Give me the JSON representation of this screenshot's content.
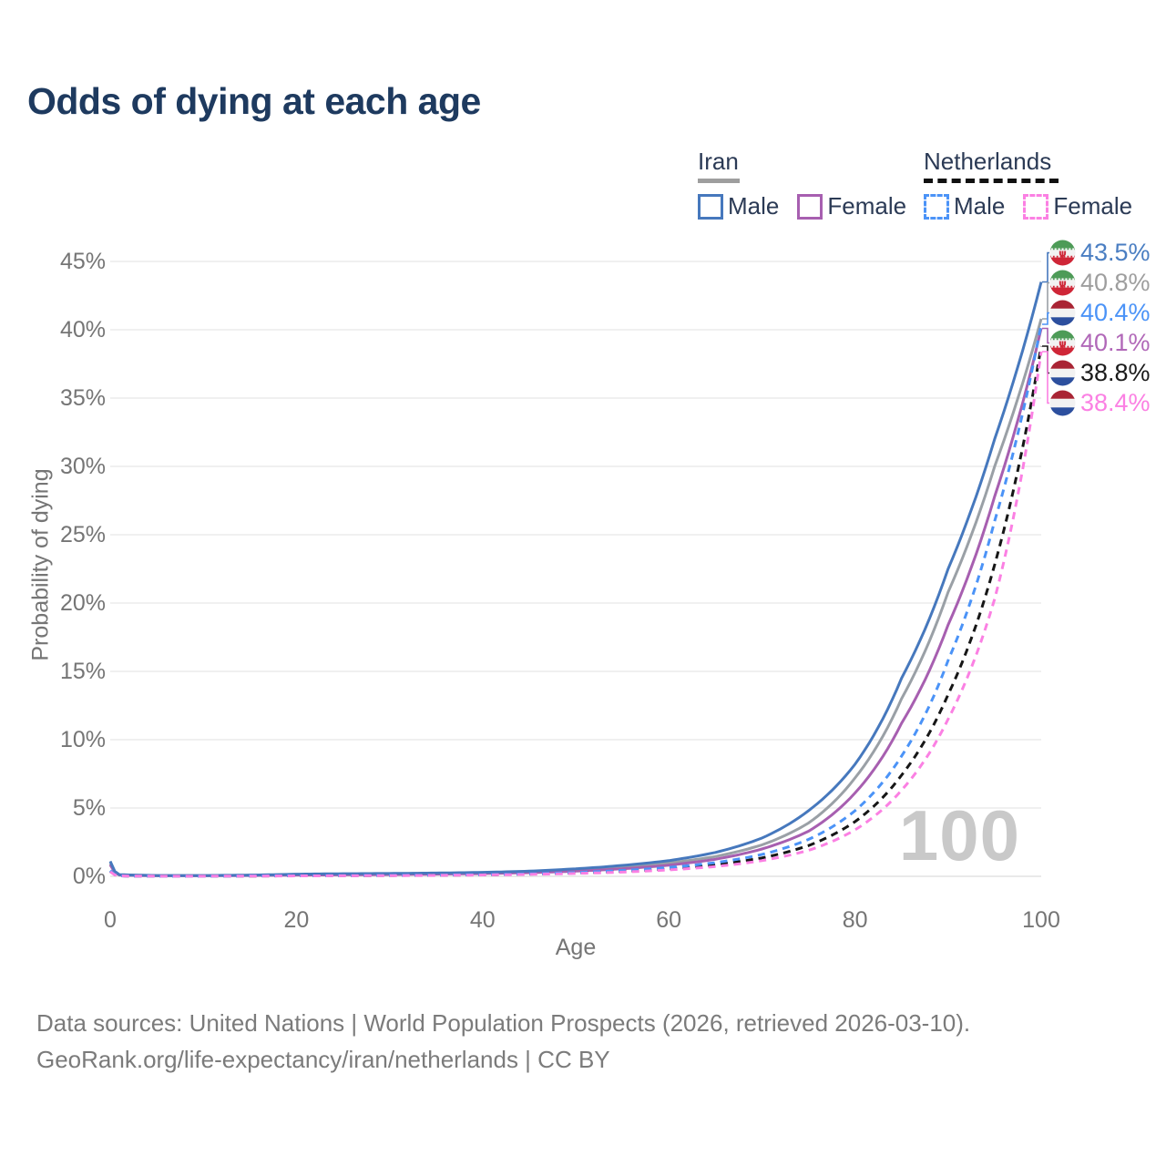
{
  "title": "Odds of dying at each age",
  "legend": {
    "iran": {
      "title": "Iran",
      "items": [
        {
          "label": "Male"
        },
        {
          "label": "Female"
        }
      ]
    },
    "netherlands": {
      "title": "Netherlands",
      "items": [
        {
          "label": "Male"
        },
        {
          "label": "Female"
        }
      ]
    }
  },
  "watermark": {
    "hovered_age": "100"
  },
  "footer": {
    "line1": "Data sources: United Nations | World Population Prospects (2026, retrieved 2026-03-10).",
    "line2": "GeoRank.org/life-expectancy/iran/netherlands | CC BY"
  },
  "colors": {
    "title_text": "#1e3a5f",
    "legend_text": "#2b3a55",
    "axis_text": "#757575",
    "gridline": "#ececec",
    "watermark": "#c9c9c9",
    "iran_underline": "#9e9e9e",
    "netherlands_underline": "#111111"
  },
  "chart_data": {
    "type": "line",
    "title": "Odds of dying at each age",
    "xlabel": "Age",
    "ylabel": "Probability of dying",
    "xlim": [
      0,
      100
    ],
    "ylim": [
      0,
      45
    ],
    "grid": true,
    "legend_position": "top-right",
    "x_ticks": [
      {
        "label": "0",
        "value": 0
      },
      {
        "label": "20",
        "value": 20
      },
      {
        "label": "40",
        "value": 40
      },
      {
        "label": "60",
        "value": 60
      },
      {
        "label": "80",
        "value": 80
      },
      {
        "label": "100",
        "value": 100
      }
    ],
    "y_ticks": [
      {
        "label": "0%",
        "value": 0
      },
      {
        "label": "5%",
        "value": 5
      },
      {
        "label": "10%",
        "value": 10
      },
      {
        "label": "15%",
        "value": 15
      },
      {
        "label": "20%",
        "value": 20
      },
      {
        "label": "25%",
        "value": 25
      },
      {
        "label": "30%",
        "value": 30
      },
      {
        "label": "35%",
        "value": 35
      },
      {
        "label": "40%",
        "value": 40
      },
      {
        "label": "45%",
        "value": 45
      }
    ],
    "series": [
      {
        "id": "iran-both",
        "name": "Iran (both sexes)",
        "country": "Iran",
        "flag": "iran",
        "color": "#9aa0a6",
        "label_color": "#9e9e9e",
        "dash": null,
        "end_value": 40.8,
        "end_label": "40.8%",
        "points": [
          [
            0,
            0.95
          ],
          [
            1,
            0.1
          ],
          [
            5,
            0.05
          ],
          [
            10,
            0.05
          ],
          [
            15,
            0.08
          ],
          [
            20,
            0.13
          ],
          [
            25,
            0.16
          ],
          [
            30,
            0.18
          ],
          [
            35,
            0.21
          ],
          [
            40,
            0.25
          ],
          [
            45,
            0.33
          ],
          [
            50,
            0.47
          ],
          [
            55,
            0.68
          ],
          [
            60,
            0.98
          ],
          [
            65,
            1.45
          ],
          [
            70,
            2.3
          ],
          [
            75,
            3.9
          ],
          [
            80,
            7.2
          ],
          [
            85,
            13.0
          ],
          [
            90,
            20.8
          ],
          [
            95,
            30.0
          ],
          [
            100,
            40.8
          ]
        ]
      },
      {
        "id": "iran-female",
        "name": "Iran Female",
        "country": "Iran",
        "flag": "iran",
        "color": "#a75fb0",
        "label_color": "#b168b8",
        "dash": null,
        "end_value": 40.1,
        "end_label": "40.1%",
        "points": [
          [
            0,
            0.85
          ],
          [
            1,
            0.09
          ],
          [
            5,
            0.04
          ],
          [
            10,
            0.04
          ],
          [
            15,
            0.06
          ],
          [
            20,
            0.09
          ],
          [
            25,
            0.11
          ],
          [
            30,
            0.13
          ],
          [
            35,
            0.16
          ],
          [
            40,
            0.2
          ],
          [
            45,
            0.27
          ],
          [
            50,
            0.38
          ],
          [
            55,
            0.55
          ],
          [
            60,
            0.82
          ],
          [
            65,
            1.25
          ],
          [
            70,
            2.0
          ],
          [
            75,
            3.3
          ],
          [
            80,
            6.1
          ],
          [
            85,
            11.2
          ],
          [
            90,
            18.4
          ],
          [
            95,
            27.8
          ],
          [
            100,
            40.1
          ]
        ]
      },
      {
        "id": "iran-male",
        "name": "Iran Male",
        "country": "Iran",
        "flag": "iran",
        "color": "#4678bd",
        "label_color": "#4a7ec2",
        "dash": null,
        "end_value": 43.5,
        "end_label": "43.5%",
        "points": [
          [
            0,
            1.1
          ],
          [
            1,
            0.12
          ],
          [
            5,
            0.06
          ],
          [
            10,
            0.06
          ],
          [
            15,
            0.09
          ],
          [
            20,
            0.16
          ],
          [
            25,
            0.19
          ],
          [
            30,
            0.21
          ],
          [
            35,
            0.24
          ],
          [
            40,
            0.29
          ],
          [
            45,
            0.38
          ],
          [
            50,
            0.55
          ],
          [
            55,
            0.8
          ],
          [
            60,
            1.15
          ],
          [
            65,
            1.75
          ],
          [
            70,
            2.8
          ],
          [
            75,
            4.8
          ],
          [
            80,
            8.2
          ],
          [
            85,
            14.5
          ],
          [
            90,
            22.5
          ],
          [
            95,
            32.0
          ],
          [
            100,
            43.5
          ]
        ]
      },
      {
        "id": "netherlands-both",
        "name": "Netherlands (both sexes)",
        "country": "Netherlands",
        "flag": "netherlands",
        "color": "#161616",
        "label_color": "#1a1a1a",
        "dash": "8 6",
        "end_value": 38.8,
        "end_label": "38.8%",
        "points": [
          [
            0,
            0.38
          ],
          [
            1,
            0.03
          ],
          [
            5,
            0.01
          ],
          [
            10,
            0.01
          ],
          [
            15,
            0.02
          ],
          [
            20,
            0.04
          ],
          [
            25,
            0.05
          ],
          [
            30,
            0.06
          ],
          [
            35,
            0.08
          ],
          [
            40,
            0.11
          ],
          [
            45,
            0.16
          ],
          [
            50,
            0.24
          ],
          [
            55,
            0.36
          ],
          [
            60,
            0.55
          ],
          [
            65,
            0.85
          ],
          [
            70,
            1.35
          ],
          [
            75,
            2.25
          ],
          [
            80,
            4.0
          ],
          [
            85,
            7.4
          ],
          [
            90,
            13.3
          ],
          [
            95,
            22.8
          ],
          [
            100,
            38.8
          ]
        ]
      },
      {
        "id": "netherlands-male",
        "name": "Netherlands Male",
        "country": "Netherlands",
        "flag": "netherlands",
        "color": "#4b93f7",
        "label_color": "#4b93f7",
        "dash": "8 6",
        "end_value": 40.4,
        "end_label": "40.4%",
        "points": [
          [
            0,
            0.42
          ],
          [
            1,
            0.03
          ],
          [
            5,
            0.01
          ],
          [
            10,
            0.01
          ],
          [
            15,
            0.03
          ],
          [
            20,
            0.05
          ],
          [
            25,
            0.06
          ],
          [
            30,
            0.07
          ],
          [
            35,
            0.09
          ],
          [
            40,
            0.12
          ],
          [
            45,
            0.18
          ],
          [
            50,
            0.28
          ],
          [
            55,
            0.43
          ],
          [
            60,
            0.65
          ],
          [
            65,
            1.0
          ],
          [
            70,
            1.6
          ],
          [
            75,
            2.7
          ],
          [
            80,
            4.8
          ],
          [
            85,
            8.8
          ],
          [
            90,
            15.8
          ],
          [
            95,
            26.0
          ],
          [
            100,
            40.4
          ]
        ]
      },
      {
        "id": "netherlands-female",
        "name": "Netherlands Female",
        "country": "Netherlands",
        "flag": "netherlands",
        "color": "#fb80e3",
        "label_color": "#fb80e3",
        "dash": "8 6",
        "end_value": 38.4,
        "end_label": "38.4%",
        "points": [
          [
            0,
            0.33
          ],
          [
            1,
            0.03
          ],
          [
            5,
            0.01
          ],
          [
            10,
            0.01
          ],
          [
            15,
            0.02
          ],
          [
            20,
            0.03
          ],
          [
            25,
            0.04
          ],
          [
            30,
            0.05
          ],
          [
            35,
            0.07
          ],
          [
            40,
            0.1
          ],
          [
            45,
            0.14
          ],
          [
            50,
            0.21
          ],
          [
            55,
            0.31
          ],
          [
            60,
            0.47
          ],
          [
            65,
            0.72
          ],
          [
            70,
            1.15
          ],
          [
            75,
            1.9
          ],
          [
            80,
            3.4
          ],
          [
            85,
            6.3
          ],
          [
            90,
            11.5
          ],
          [
            95,
            20.3
          ],
          [
            100,
            38.4
          ]
        ]
      }
    ]
  }
}
